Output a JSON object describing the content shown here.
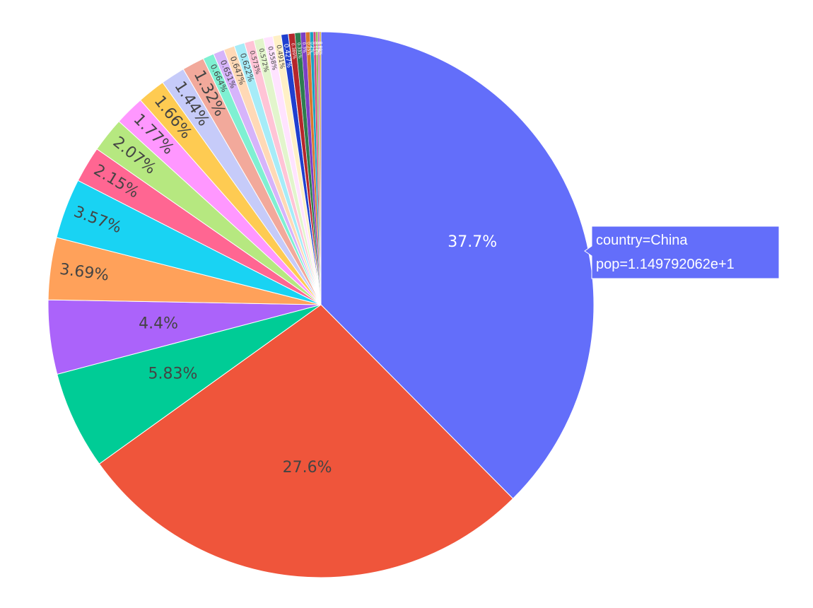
{
  "chart_data": {
    "type": "pie",
    "title": "",
    "slices": [
      {
        "country": "China",
        "percent": 37.7,
        "color": "#636efa",
        "text_color": "#ffffff"
      },
      {
        "percent": 27.6,
        "color": "#EF553B",
        "text_color": "#444444"
      },
      {
        "percent": 5.83,
        "color": "#00cc96",
        "text_color": "#444444"
      },
      {
        "percent": 4.4,
        "color": "#ab63fa",
        "text_color": "#444444"
      },
      {
        "percent": 3.69,
        "color": "#FFA15A",
        "text_color": "#444444"
      },
      {
        "percent": 3.57,
        "color": "#19d3f3",
        "text_color": "#444444"
      },
      {
        "percent": 2.15,
        "color": "#FF6692",
        "text_color": "#444444"
      },
      {
        "percent": 2.07,
        "color": "#B6E880",
        "text_color": "#444444"
      },
      {
        "percent": 1.77,
        "color": "#FF97FF",
        "text_color": "#444444"
      },
      {
        "percent": 1.66,
        "color": "#FECB52",
        "text_color": "#444444"
      },
      {
        "percent": 1.44,
        "color": "#c6cbf9",
        "text_color": "#444444"
      },
      {
        "percent": 1.32,
        "color": "#f2a99b",
        "text_color": "#444444"
      },
      {
        "percent": 0.664,
        "color": "#7ff0d2",
        "text_color": "#444444"
      },
      {
        "percent": 0.651,
        "color": "#d6b4fb",
        "text_color": "#444444"
      },
      {
        "percent": 0.647,
        "color": "#ffd9b6",
        "text_color": "#444444"
      },
      {
        "percent": 0.622,
        "color": "#a6ecf8",
        "text_color": "#444444"
      },
      {
        "percent": 0.573,
        "color": "#ffc4d6",
        "text_color": "#444444"
      },
      {
        "percent": 0.572,
        "color": "#e2f5cc",
        "text_color": "#444444"
      },
      {
        "percent": 0.558,
        "color": "#ffe3ff",
        "text_color": "#444444"
      },
      {
        "percent": 0.491,
        "color": "#fff0c6",
        "text_color": "#444444"
      },
      {
        "percent": 0.427,
        "color": "#1f3fcf",
        "text_color": "#ffffff"
      },
      {
        "percent": 0.389,
        "color": "#b5262b",
        "text_color": "#ffffff"
      },
      {
        "percent": 0.331,
        "color": "#2e7d4f",
        "text_color": "#ffffff"
      },
      {
        "percent": 0.3,
        "color": "#7b3fc6",
        "text_color": "#ffffff"
      },
      {
        "percent": 0.25,
        "color": "#d9772e",
        "text_color": "#ffffff"
      },
      {
        "percent": 0.2,
        "color": "#1aa2c2",
        "text_color": "#ffffff"
      },
      {
        "percent": 0.15,
        "color": "#d24a78",
        "text_color": "#ffffff"
      },
      {
        "percent": 0.12,
        "color": "#8fbf5a",
        "text_color": "#ffffff"
      },
      {
        "percent": 0.1,
        "color": "#c86cc8",
        "text_color": "#ffffff"
      },
      {
        "percent": 0.08,
        "color": "#d6a93a",
        "text_color": "#ffffff"
      }
    ],
    "tooltip": {
      "lines": [
        "country=China",
        "pop=1.149792062e+1"
      ],
      "background": "#636efa"
    }
  }
}
